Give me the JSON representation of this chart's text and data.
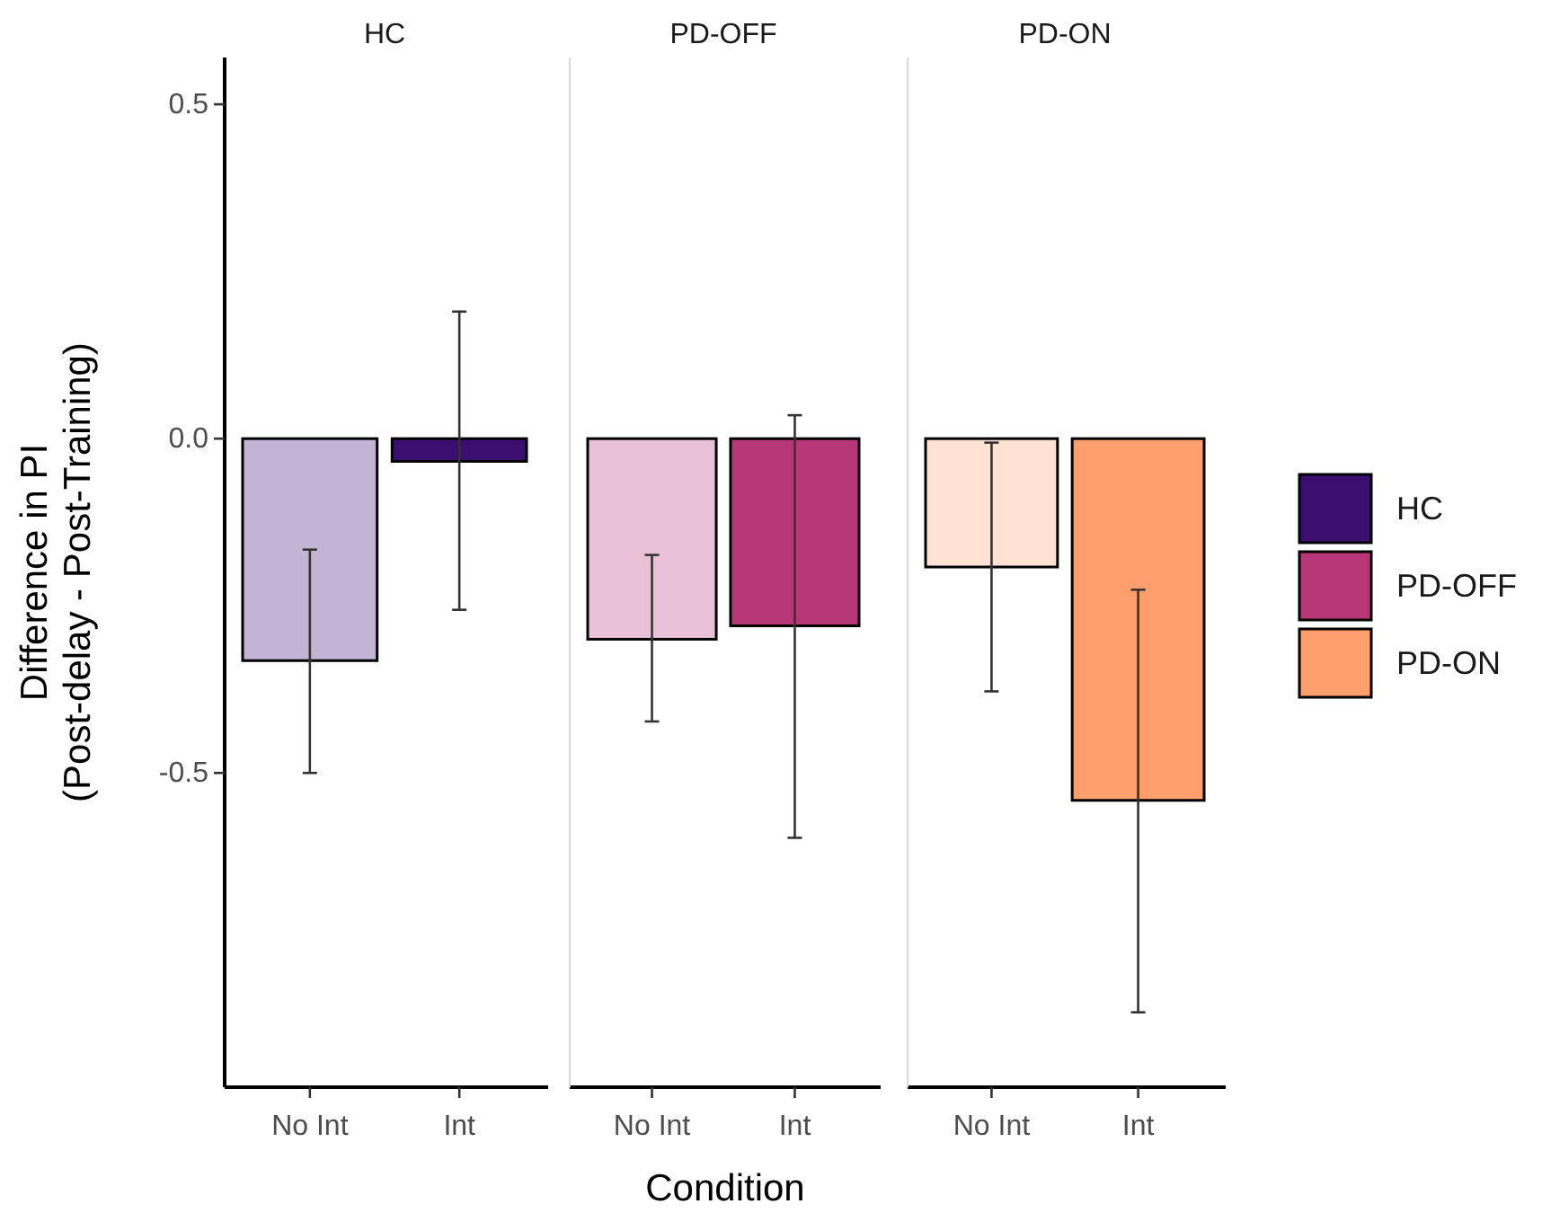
{
  "chart_data": [
    {
      "type": "bar",
      "title": "HC",
      "categories": [
        "No Int",
        "Int"
      ],
      "ylabel": "Difference in PI\n(Post-delay - Post-Training)",
      "ylim": [
        -0.97,
        0.57
      ],
      "yticks": [
        0.5,
        {
          "value": 0,
          "label": "0.0"
        },
        -0.5
      ],
      "legend": "right",
      "series": [
        {
          "name": "HC",
          "color": "#3b0f70",
          "colors": [
            "#c3b4d4",
            "#3b0f70"
          ],
          "values": [
            -0.332,
            -0.034
          ],
          "errors": [
            [
              -0.5,
              -0.166
            ],
            [
              -0.256,
              0.19
            ]
          ]
        }
      ]
    },
    {
      "type": "bar",
      "title": "PD-OFF",
      "categories": [
        "No Int",
        "Int"
      ],
      "xlabel": "Condition",
      "ylim": [
        -0.97,
        0.57
      ],
      "tick_labels": "x",
      "legend": "right",
      "series": [
        {
          "name": "PD-OFF",
          "color": "#b73779",
          "colors": [
            "#e8c1d6",
            "#b73779"
          ],
          "values": [
            -0.3,
            -0.28
          ],
          "errors": [
            [
              -0.423,
              -0.174
            ],
            [
              -0.597,
              0.035
            ]
          ]
        }
      ]
    },
    {
      "type": "bar",
      "title": "PD-ON",
      "categories": [
        "No Int",
        "Int"
      ],
      "ylim": [
        -0.97,
        0.57
      ],
      "tick_labels": "x",
      "legend": "right",
      "series": [
        {
          "name": "PD-ON",
          "color": "#fe9f6d",
          "colors": [
            "#ffe2d3",
            "#fe9f6d"
          ],
          "values": [
            -0.192,
            -0.541
          ],
          "errors": [
            [
              -0.378,
              -0.006
            ],
            [
              -0.858,
              -0.226
            ]
          ]
        }
      ]
    }
  ]
}
